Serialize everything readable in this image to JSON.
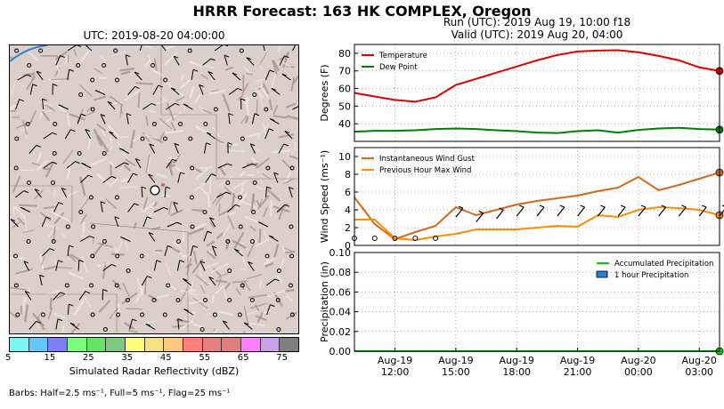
{
  "title": "HRRR Forecast: 163 HK COMPLEX, Oregon",
  "map": {
    "title": "UTC: 2019-08-20 04:00:00",
    "colorbar": {
      "label": "Simulated Radar Reflectivity (dBZ)",
      "ticks": [
        "5",
        "15",
        "25",
        "35",
        "45",
        "55",
        "65",
        "75"
      ],
      "colors": [
        "#7ff4f4",
        "#64c8f5",
        "#7f7ff5",
        "#7fff7f",
        "#64e664",
        "#7fc87f",
        "#ffff7f",
        "#f5e17f",
        "#ffc87f",
        "#ff7f7f",
        "#e67f7f",
        "#e17f7f",
        "#ff7fff",
        "#c8a0e6",
        "#7f7f7f"
      ]
    },
    "barb_note": "Barbs: Half=2.5 ms⁻¹, Full=5 ms⁻¹, Flag=25 ms⁻¹"
  },
  "run_title": {
    "line1": "Run (UTC): 2019 Aug 19, 10:00 f18",
    "line2": "Valid (UTC): 2019 Aug 20, 04:00"
  },
  "chart_data": [
    {
      "type": "line",
      "panel": "temperature",
      "ylabel": "Degrees (F)",
      "ylim": [
        30,
        85
      ],
      "yticks": [
        40,
        50,
        60,
        70,
        80
      ],
      "grid": true,
      "legend_position": "top-left",
      "x_hours_utc": [
        10,
        11,
        12,
        13,
        14,
        15,
        16,
        17,
        18,
        19,
        20,
        21,
        22,
        23,
        0,
        1,
        2,
        3,
        4
      ],
      "series": [
        {
          "name": "Temperature",
          "color": "#e00000",
          "values": [
            57.5,
            55.5,
            53.5,
            52.5,
            55,
            62,
            65.5,
            69,
            72.5,
            76,
            79,
            81,
            81.5,
            81.7,
            80.6,
            78.5,
            76,
            72,
            70
          ]
        },
        {
          "name": "Dew Point",
          "color": "#008000",
          "values": [
            35.5,
            36,
            36,
            36.3,
            37,
            37.3,
            37,
            36.3,
            35.8,
            35,
            34.7,
            35.8,
            36.3,
            35,
            36.5,
            37.3,
            37.7,
            37,
            36.7
          ]
        }
      ]
    },
    {
      "type": "line",
      "panel": "wind",
      "ylabel": "Wind Speed (ms⁻¹)",
      "ylim": [
        0,
        11
      ],
      "yticks": [
        0,
        2,
        4,
        6,
        8,
        10
      ],
      "grid": true,
      "legend_position": "top-left",
      "x_hours_utc": [
        10,
        11,
        12,
        13,
        14,
        15,
        16,
        17,
        18,
        19,
        20,
        21,
        22,
        23,
        0,
        1,
        2,
        3,
        4
      ],
      "series": [
        {
          "name": "Instantaneous Wind Gust",
          "color": "#d2691e",
          "values": [
            5.4,
            2.4,
            0.7,
            1.5,
            2.2,
            4.3,
            3.4,
            4.0,
            4.6,
            5.0,
            5.3,
            5.6,
            6.1,
            6.5,
            7.7,
            6.2,
            6.8,
            7.5,
            8.2
          ]
        },
        {
          "name": "Previous Hour Max Wind",
          "color": "#ff8c00",
          "values": [
            2.9,
            2.9,
            0.8,
            0.6,
            1.0,
            1.3,
            1.8,
            1.8,
            1.8,
            2.0,
            2.2,
            2.1,
            3.4,
            3.2,
            4.0,
            4.3,
            4.2,
            4.0,
            3.4
          ]
        }
      ]
    },
    {
      "type": "line",
      "panel": "precipitation",
      "ylabel": "Precipitation (in)",
      "ylim": [
        0,
        0.1
      ],
      "yticks": [
        "0.00",
        "0.02",
        "0.04",
        "0.06",
        "0.08",
        "0.10"
      ],
      "ytick_values": [
        0,
        0.02,
        0.04,
        0.06,
        0.08,
        0.1
      ],
      "grid": true,
      "legend_position": "top-right",
      "x_hours_utc": [
        10,
        11,
        12,
        13,
        14,
        15,
        16,
        17,
        18,
        19,
        20,
        21,
        22,
        23,
        0,
        1,
        2,
        3,
        4
      ],
      "series": [
        {
          "name": "Accumulated Precipitation",
          "color": "#00cc00",
          "values": [
            0,
            0,
            0,
            0,
            0,
            0,
            0,
            0,
            0,
            0,
            0,
            0,
            0,
            0,
            0,
            0,
            0,
            0,
            0
          ]
        },
        {
          "name": "1 hour Precipitation",
          "color": "#1e7fd8",
          "values": [
            0,
            0,
            0,
            0,
            0,
            0,
            0,
            0,
            0,
            0,
            0,
            0,
            0,
            0,
            0,
            0,
            0,
            0,
            0
          ]
        }
      ],
      "xticks": [
        {
          "hour": 12,
          "line1": "Aug-19",
          "line2": "12:00"
        },
        {
          "hour": 15,
          "line1": "Aug-19",
          "line2": "15:00"
        },
        {
          "hour": 18,
          "line1": "Aug-19",
          "line2": "18:00"
        },
        {
          "hour": 21,
          "line1": "Aug-19",
          "line2": "21:00"
        },
        {
          "hour": 24,
          "line1": "Aug-20",
          "line2": "00:00"
        },
        {
          "hour": 27,
          "line1": "Aug-20",
          "line2": "03:00"
        }
      ]
    }
  ]
}
